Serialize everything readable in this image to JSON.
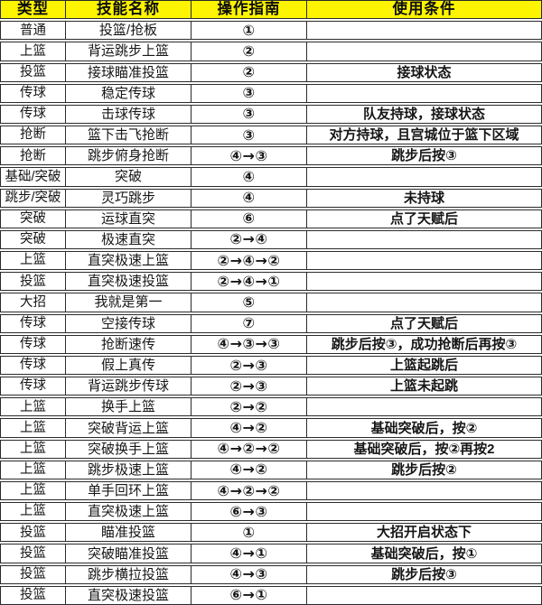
{
  "colors": {
    "header_bg": "#fcf400",
    "border": "#2b2b2b",
    "text": "#161616",
    "row_bg": "#ffffff"
  },
  "chart_data": {
    "type": "table",
    "title": "",
    "headers": [
      "类型",
      "技能名称",
      "操作指南",
      "使用条件"
    ],
    "rows": [
      [
        "普通",
        "投篮/抢板",
        "①",
        ""
      ],
      [
        "上篮",
        "背运跳步上篮",
        "②",
        ""
      ],
      [
        "投篮",
        "接球瞄准投篮",
        "②",
        "接球状态"
      ],
      [
        "传球",
        "稳定传球",
        "③",
        ""
      ],
      [
        "传球",
        "击球传球",
        "③",
        "队友持球，接球状态"
      ],
      [
        "抢断",
        "篮下击飞抢断",
        "③",
        "对方持球，且宫城位于篮下区域"
      ],
      [
        "抢断",
        "跳步俯身抢断",
        "④→③",
        "跳步后按③"
      ],
      [
        "基础/突破",
        "突破",
        "④",
        ""
      ],
      [
        "跳步/突破",
        "灵巧跳步",
        "④",
        "未持球"
      ],
      [
        "突破",
        "运球直突",
        "⑥",
        "点了天赋后"
      ],
      [
        "突破",
        "极速直突",
        "②→④",
        ""
      ],
      [
        "上篮",
        "直突极速上篮",
        "②→④→②",
        ""
      ],
      [
        "投篮",
        "直突极速投篮",
        "②→④→①",
        ""
      ],
      [
        "大招",
        "我就是第一",
        "⑤",
        ""
      ],
      [
        "传球",
        "空接传球",
        "⑦",
        "点了天赋后"
      ],
      [
        "传球",
        "抢断速传",
        "④→③→③",
        "跳步后按③，成功抢断后再按③"
      ],
      [
        "传球",
        "假上真传",
        "②→③",
        "上篮起跳后"
      ],
      [
        "传球",
        "背运跳步传球",
        "②→③",
        "上篮未起跳"
      ],
      [
        "上篮",
        "换手上篮",
        "②→②",
        ""
      ],
      [
        "上篮",
        "突破背运上篮",
        "④→②",
        "基础突破后，按②"
      ],
      [
        "上篮",
        "突破换手上篮",
        "④→②→②",
        "基础突破后，按②再按2"
      ],
      [
        "上篮",
        "跳步极速上篮",
        "④→②",
        "跳步后按②"
      ],
      [
        "上篮",
        "单手回环上篮",
        "④→②→②",
        ""
      ],
      [
        "上篮",
        "直突极速上篮",
        "⑥→③",
        ""
      ],
      [
        "投篮",
        "瞄准投篮",
        "①",
        "大招开启状态下"
      ],
      [
        "投篮",
        "突破瞄准投篮",
        "④→①",
        "基础突破后，按①"
      ],
      [
        "投篮",
        "跳步横拉投篮",
        "④→③",
        "跳步后按③"
      ],
      [
        "投篮",
        "直突极速投篮",
        "⑥→①",
        ""
      ]
    ]
  }
}
